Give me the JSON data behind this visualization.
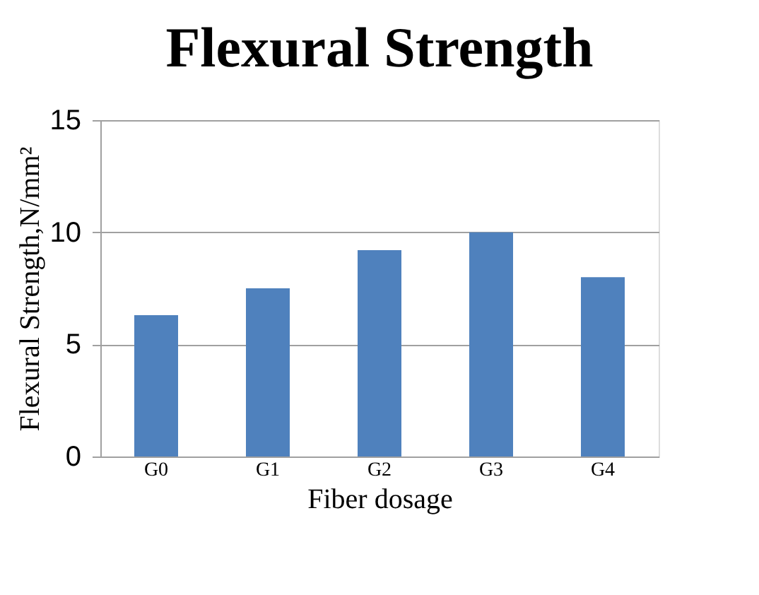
{
  "chart_data": {
    "type": "bar",
    "title": "Flexural Strength",
    "xlabel": "Fiber dosage",
    "ylabel": "Flexural Strength,N/mm²",
    "categories": [
      "G0",
      "G1",
      "G2",
      "G3",
      "G4"
    ],
    "values": [
      6.3,
      7.5,
      9.2,
      10.0,
      8.0
    ],
    "color": "#4f81bd",
    "ylim": [
      0,
      15
    ],
    "yticks": [
      0,
      5,
      10,
      15
    ],
    "grid": "y"
  }
}
